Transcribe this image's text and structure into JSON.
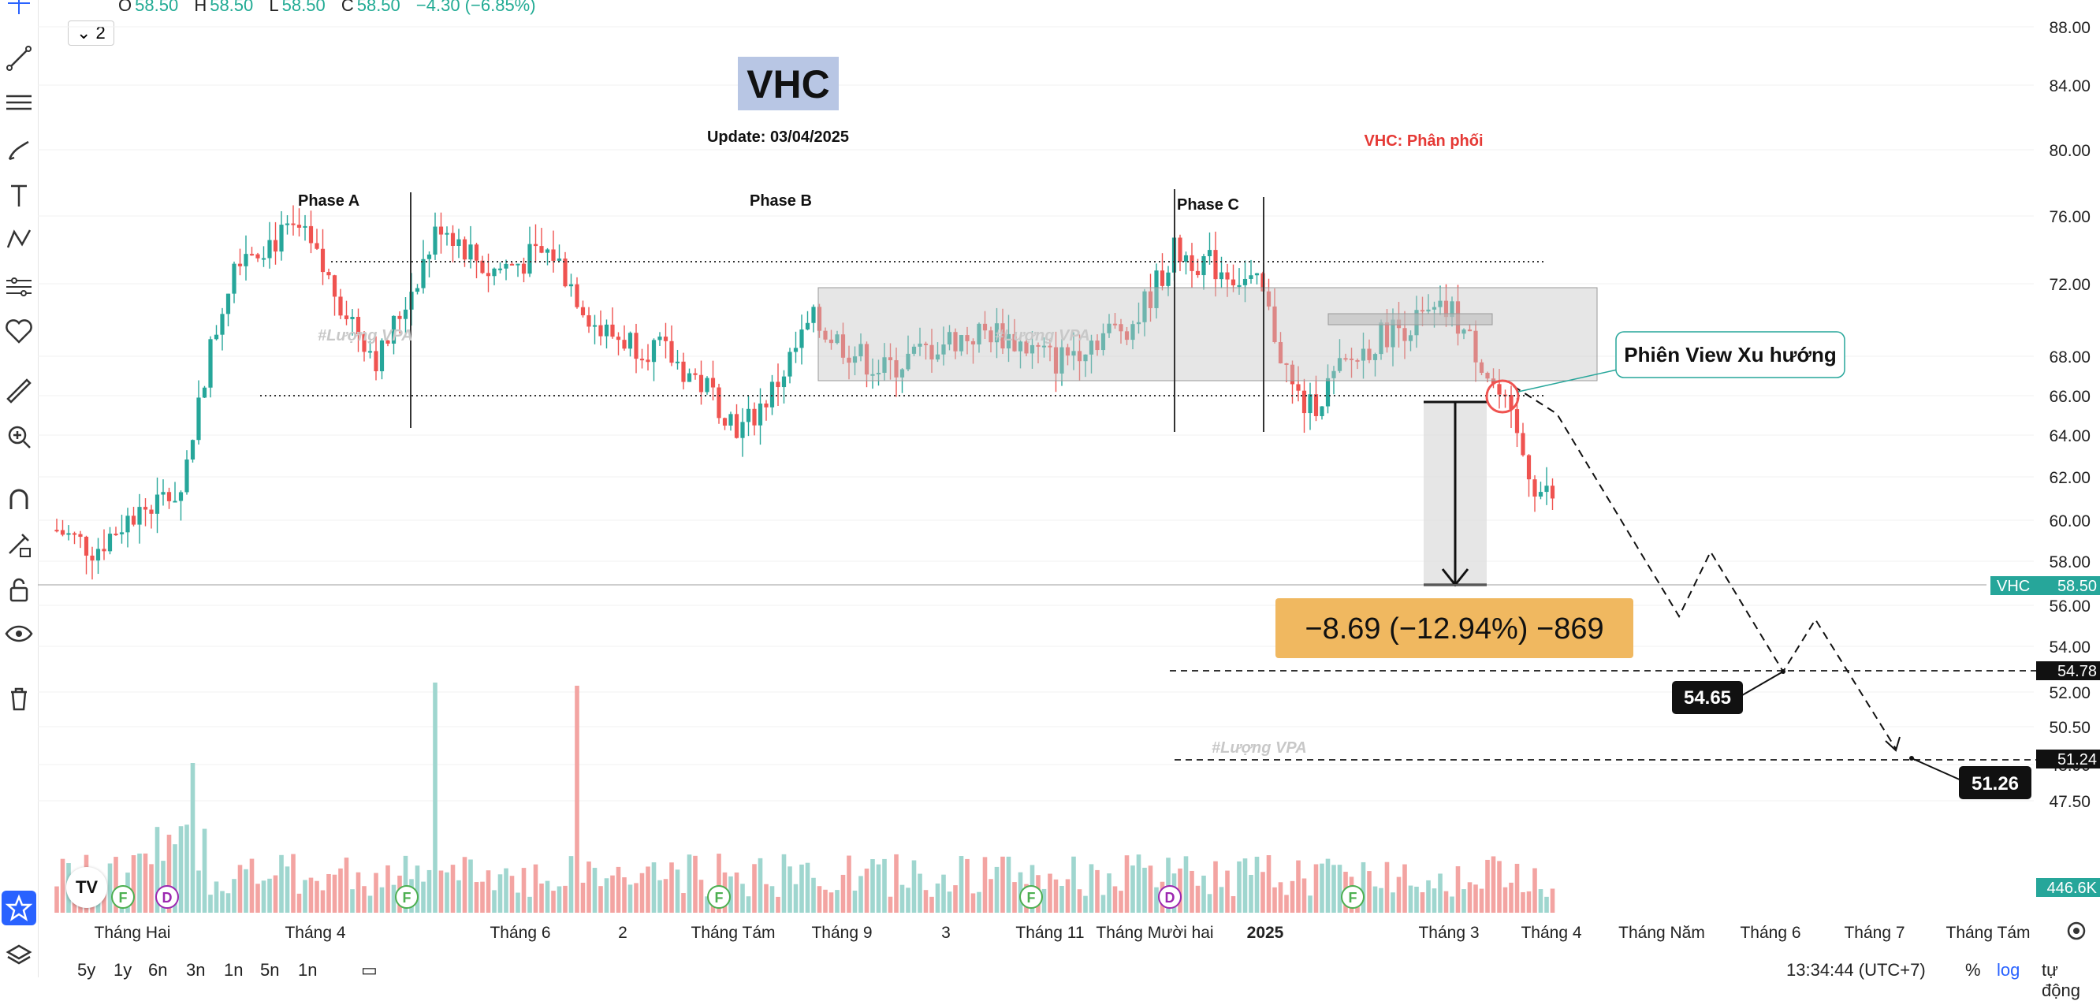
{
  "ohlc": {
    "o_label": "O",
    "o": "58.50",
    "h_label": "H",
    "h": "58.50",
    "l_label": "L",
    "l": "58.50",
    "c_label": "C",
    "c": "58.50",
    "change": "−4.30 (−6.85%)"
  },
  "indicator_count": "2",
  "title": "VHC",
  "update": "Update: 03/04/2025",
  "annotation_red": "VHC: Phân phối",
  "phases": [
    "Phase A",
    "Phase B",
    "Phase C"
  ],
  "callout": "Phiên View Xu hướng",
  "measure": "−8.69 (−12.94%) −869",
  "watermark": "#Lượng VPA",
  "target_labels": [
    "54.65",
    "51.26"
  ],
  "price_axis": [
    "88.00",
    "84.00",
    "80.00",
    "76.00",
    "72.00",
    "68.00",
    "66.00",
    "64.00",
    "62.00",
    "60.00",
    "58.00",
    "56.00",
    "54.00",
    "52.00",
    "50.50",
    "48.90",
    "47.50"
  ],
  "axis_badges": {
    "symbol": "VHC",
    "last": "58.50",
    "level1": "54.78",
    "level2": "51.24",
    "volume": "446.6K"
  },
  "time_axis": [
    "Tháng Hai",
    "Tháng 4",
    "Tháng 6",
    "2",
    "Tháng Tám",
    "Tháng 9",
    "3",
    "Tháng 11",
    "Tháng Mười hai",
    "2025",
    "Tháng 3",
    "Tháng 4",
    "Tháng Năm",
    "Tháng 6",
    "Tháng 7",
    "Tháng Tám"
  ],
  "timeframes": [
    "5y",
    "1y",
    "6n",
    "3n",
    "1n",
    "5n",
    "1n"
  ],
  "clock": "13:34:44 (UTC+7)",
  "bottom_right": [
    "%",
    "log",
    "tự động"
  ],
  "event_markers": [
    "F",
    "D",
    "F",
    "F",
    "F",
    "D",
    "F"
  ],
  "colors": {
    "up": "#26a69a",
    "down": "#ef5350",
    "accent": "#2962ff",
    "measure_bg": "#f0b860",
    "callout_border": "#26a69a"
  },
  "logo_text": "TV"
}
